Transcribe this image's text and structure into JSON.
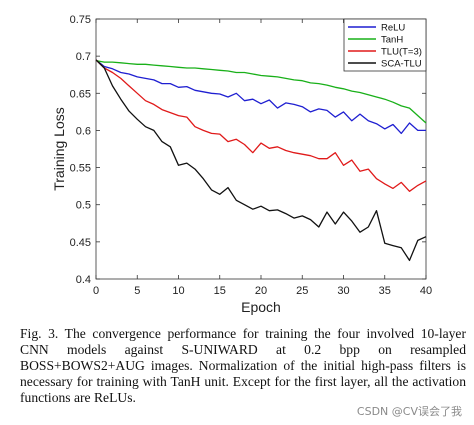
{
  "chart_data": {
    "type": "line",
    "xlabel": "Epoch",
    "ylabel": "Training Loss",
    "xlim": [
      0,
      40
    ],
    "ylim": [
      0.4,
      0.75
    ],
    "xticks": [
      0,
      5,
      10,
      15,
      20,
      25,
      30,
      35,
      40
    ],
    "yticks": [
      0.4,
      0.45,
      0.5,
      0.55,
      0.6,
      0.65,
      0.7,
      0.75
    ],
    "grid": false,
    "legend_position": "top-right",
    "x": [
      0,
      1,
      2,
      3,
      4,
      5,
      6,
      7,
      8,
      9,
      10,
      11,
      12,
      13,
      14,
      15,
      16,
      17,
      18,
      19,
      20,
      21,
      22,
      23,
      24,
      25,
      26,
      27,
      28,
      29,
      30,
      31,
      32,
      33,
      34,
      35,
      36,
      37,
      38,
      39,
      40
    ],
    "series": [
      {
        "name": "ReLU",
        "color": "#1f1fd1",
        "values": [
          0.695,
          0.686,
          0.683,
          0.678,
          0.676,
          0.672,
          0.67,
          0.668,
          0.663,
          0.663,
          0.658,
          0.659,
          0.654,
          0.652,
          0.65,
          0.649,
          0.645,
          0.65,
          0.64,
          0.642,
          0.636,
          0.641,
          0.63,
          0.637,
          0.635,
          0.632,
          0.625,
          0.629,
          0.627,
          0.618,
          0.625,
          0.613,
          0.622,
          0.613,
          0.609,
          0.602,
          0.608,
          0.596,
          0.61,
          0.6,
          0.6
        ]
      },
      {
        "name": "TanH",
        "color": "#19b019",
        "values": [
          0.694,
          0.692,
          0.692,
          0.691,
          0.69,
          0.689,
          0.689,
          0.688,
          0.687,
          0.686,
          0.685,
          0.684,
          0.684,
          0.683,
          0.682,
          0.681,
          0.68,
          0.678,
          0.678,
          0.676,
          0.674,
          0.673,
          0.672,
          0.67,
          0.668,
          0.667,
          0.664,
          0.663,
          0.661,
          0.658,
          0.656,
          0.653,
          0.651,
          0.648,
          0.645,
          0.642,
          0.638,
          0.633,
          0.63,
          0.62,
          0.61
        ]
      },
      {
        "name": "TLU(T=3)",
        "color": "#e01a1a",
        "values": [
          0.695,
          0.684,
          0.678,
          0.67,
          0.66,
          0.65,
          0.64,
          0.635,
          0.628,
          0.624,
          0.62,
          0.618,
          0.605,
          0.6,
          0.596,
          0.595,
          0.585,
          0.588,
          0.581,
          0.57,
          0.583,
          0.576,
          0.578,
          0.573,
          0.57,
          0.568,
          0.566,
          0.562,
          0.562,
          0.57,
          0.553,
          0.56,
          0.545,
          0.548,
          0.535,
          0.528,
          0.522,
          0.53,
          0.518,
          0.526,
          0.532
        ]
      },
      {
        "name": "SCA-TLU",
        "color": "#111111",
        "values": [
          0.695,
          0.684,
          0.66,
          0.642,
          0.626,
          0.615,
          0.605,
          0.6,
          0.585,
          0.578,
          0.553,
          0.556,
          0.548,
          0.535,
          0.52,
          0.514,
          0.523,
          0.506,
          0.5,
          0.494,
          0.498,
          0.492,
          0.493,
          0.488,
          0.482,
          0.485,
          0.48,
          0.47,
          0.49,
          0.474,
          0.49,
          0.478,
          0.463,
          0.47,
          0.492,
          0.448,
          0.445,
          0.442,
          0.425,
          0.452,
          0.457
        ]
      }
    ]
  },
  "caption": "Fig. 3.    The convergence performance for training the four involved 10-layer CNN models against S-UNIWARD at 0.2 bpp on resampled BOSS+BOWS2+AUG images. Normalization of the initial high-pass filters is necessary for training with TanH unit. Except for the first layer, all the activation functions are ReLUs.",
  "watermark": "CSDN @CV误会了我"
}
